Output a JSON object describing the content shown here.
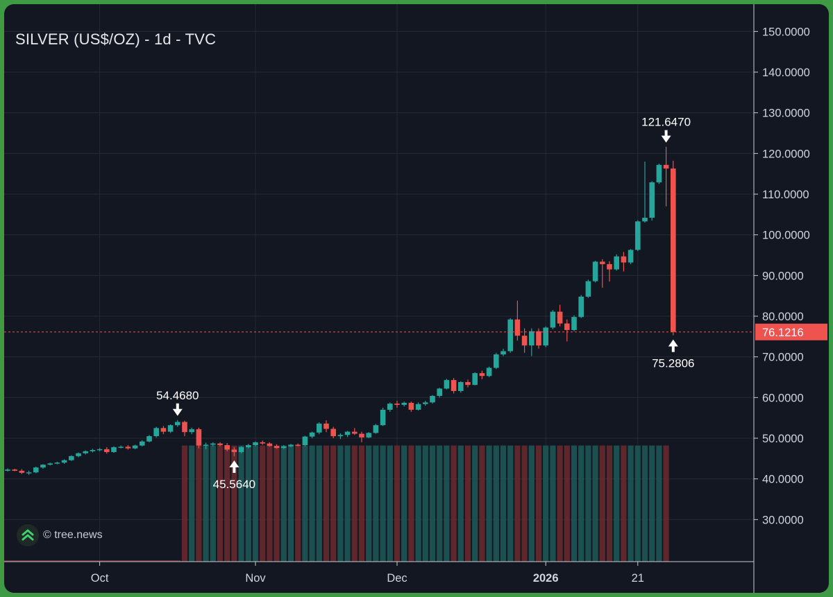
{
  "watermark": {
    "text": "© tree.news"
  },
  "colors": {
    "background": "#131722",
    "up": "#26a69a",
    "down": "#ef5350",
    "grid": "#262a35",
    "axis_text": "#d1d4dc",
    "price_line": "#ef5350"
  },
  "chart_data": {
    "type": "candlestick",
    "title": "SILVER (US$/OZ) - 1d - TVC",
    "ylim": [
      20,
      155
    ],
    "y_ticks": [
      30,
      40,
      50,
      60,
      70,
      80,
      90,
      100,
      110,
      120,
      130,
      140,
      150
    ],
    "y_tick_labels": [
      "30.0000",
      "40.0000",
      "50.0000",
      "60.0000",
      "70.0000",
      "80.0000",
      "90.0000",
      "100.0000",
      "110.0000",
      "120.0000",
      "130.0000",
      "140.0000",
      "150.0000"
    ],
    "x_ticks": [
      {
        "label": "Oct",
        "bold": false,
        "index": 13
      },
      {
        "label": "Nov",
        "bold": false,
        "index": 35
      },
      {
        "label": "Dec",
        "bold": false,
        "index": 55
      },
      {
        "label": "2026",
        "bold": true,
        "index": 76
      },
      {
        "label": "21",
        "bold": false,
        "index": 89
      }
    ],
    "last_price": 76.1216,
    "last_price_label": "76.1216",
    "grid": true,
    "volume_level": 48.2,
    "candles": [
      [
        42.0,
        42.6,
        41.8,
        42.3
      ],
      [
        42.3,
        42.5,
        41.9,
        42.0
      ],
      [
        42.0,
        42.4,
        41.2,
        41.5
      ],
      [
        41.5,
        42.0,
        41.0,
        41.6
      ],
      [
        41.6,
        43.0,
        41.4,
        42.8
      ],
      [
        42.8,
        43.6,
        42.5,
        43.5
      ],
      [
        43.5,
        44.0,
        43.3,
        43.8
      ],
      [
        43.8,
        44.2,
        43.6,
        44.0
      ],
      [
        44.0,
        44.8,
        43.7,
        44.6
      ],
      [
        44.6,
        45.8,
        44.4,
        45.6
      ],
      [
        45.6,
        46.5,
        45.3,
        46.3
      ],
      [
        46.3,
        47.0,
        46.0,
        46.8
      ],
      [
        46.8,
        47.4,
        46.5,
        47.1
      ],
      [
        47.1,
        47.6,
        46.8,
        47.3
      ],
      [
        47.3,
        47.8,
        46.2,
        46.6
      ],
      [
        46.6,
        48.0,
        46.4,
        47.8
      ],
      [
        47.8,
        48.2,
        47.5,
        47.9
      ],
      [
        47.9,
        48.3,
        47.2,
        47.5
      ],
      [
        47.5,
        48.4,
        47.3,
        48.2
      ],
      [
        48.2,
        49.5,
        48.0,
        49.2
      ],
      [
        49.2,
        50.8,
        49.0,
        50.5
      ],
      [
        50.5,
        52.8,
        50.2,
        52.5
      ],
      [
        52.5,
        53.0,
        51.0,
        51.6
      ],
      [
        51.6,
        53.4,
        51.3,
        53.2
      ],
      [
        53.2,
        54.468,
        52.8,
        54.0
      ],
      [
        54.0,
        54.3,
        50.5,
        51.5
      ],
      [
        51.5,
        52.6,
        51.0,
        52.2
      ],
      [
        52.2,
        52.6,
        47.5,
        48.2
      ],
      [
        48.2,
        48.9,
        47.3,
        48.4
      ],
      [
        48.4,
        49.0,
        48.0,
        48.7
      ],
      [
        48.7,
        49.0,
        48.0,
        48.3
      ],
      [
        48.3,
        48.8,
        46.8,
        47.2
      ],
      [
        47.2,
        47.8,
        45.564,
        46.6
      ],
      [
        46.6,
        48.0,
        46.3,
        47.8
      ],
      [
        47.8,
        48.6,
        47.5,
        48.3
      ],
      [
        48.3,
        49.2,
        48.0,
        49.0
      ],
      [
        49.0,
        49.4,
        48.4,
        48.7
      ],
      [
        48.7,
        49.0,
        47.9,
        48.1
      ],
      [
        48.1,
        48.5,
        47.4,
        47.6
      ],
      [
        47.6,
        48.3,
        47.3,
        48.0
      ],
      [
        48.0,
        48.6,
        47.8,
        48.4
      ],
      [
        48.4,
        48.7,
        48.0,
        48.3
      ],
      [
        48.3,
        50.6,
        48.0,
        50.4
      ],
      [
        50.4,
        51.6,
        50.0,
        51.4
      ],
      [
        51.4,
        53.9,
        51.0,
        53.6
      ],
      [
        53.6,
        54.4,
        51.5,
        52.3
      ],
      [
        52.3,
        52.8,
        50.0,
        50.5
      ],
      [
        50.5,
        51.2,
        49.8,
        50.8
      ],
      [
        50.8,
        51.8,
        50.3,
        51.6
      ],
      [
        51.6,
        52.5,
        50.8,
        51.1
      ],
      [
        51.1,
        51.6,
        49.0,
        50.2
      ],
      [
        50.2,
        51.5,
        50.0,
        51.3
      ],
      [
        51.3,
        53.5,
        51.1,
        53.2
      ],
      [
        53.2,
        57.5,
        53.0,
        57.0
      ],
      [
        57.0,
        58.8,
        56.5,
        58.5
      ],
      [
        58.5,
        59.2,
        57.5,
        58.2
      ],
      [
        58.2,
        59.0,
        57.8,
        58.7
      ],
      [
        58.7,
        59.0,
        56.5,
        57.0
      ],
      [
        57.0,
        58.8,
        56.8,
        58.4
      ],
      [
        58.4,
        59.2,
        58.0,
        58.8
      ],
      [
        58.8,
        60.6,
        58.5,
        60.4
      ],
      [
        60.4,
        62.4,
        60.0,
        62.2
      ],
      [
        62.2,
        64.6,
        62.0,
        64.3
      ],
      [
        64.3,
        64.8,
        61.0,
        61.6
      ],
      [
        61.6,
        64.0,
        61.2,
        63.8
      ],
      [
        63.8,
        64.4,
        62.5,
        63.1
      ],
      [
        63.1,
        66.2,
        63.0,
        66.0
      ],
      [
        66.0,
        66.6,
        64.5,
        65.3
      ],
      [
        65.3,
        67.6,
        65.0,
        67.3
      ],
      [
        67.3,
        71.0,
        67.0,
        70.6
      ],
      [
        70.6,
        72.0,
        70.2,
        71.4
      ],
      [
        71.4,
        79.5,
        71.0,
        79.2
      ],
      [
        79.2,
        83.8,
        74.0,
        75.2
      ],
      [
        75.2,
        77.0,
        71.0,
        72.8
      ],
      [
        72.8,
        77.0,
        70.2,
        76.3
      ],
      [
        76.3,
        77.0,
        72.0,
        72.8
      ],
      [
        72.8,
        77.5,
        72.4,
        77.2
      ],
      [
        77.2,
        81.5,
        76.8,
        81.1
      ],
      [
        81.1,
        82.8,
        77.5,
        78.2
      ],
      [
        78.2,
        79.2,
        73.8,
        76.6
      ],
      [
        76.6,
        80.2,
        76.3,
        79.8
      ],
      [
        79.8,
        85.2,
        79.5,
        84.8
      ],
      [
        84.8,
        89.0,
        84.5,
        88.6
      ],
      [
        88.6,
        93.6,
        88.3,
        93.4
      ],
      [
        93.4,
        94.0,
        87.0,
        92.8
      ],
      [
        92.8,
        93.5,
        88.5,
        91.5
      ],
      [
        91.5,
        95.2,
        91.2,
        94.7
      ],
      [
        94.7,
        95.8,
        91.0,
        93.2
      ],
      [
        93.2,
        96.5,
        92.8,
        96.3
      ],
      [
        96.3,
        103.6,
        96.0,
        103.3
      ],
      [
        103.3,
        118.0,
        103.0,
        104.2
      ],
      [
        104.2,
        113.2,
        103.5,
        112.9
      ],
      [
        112.9,
        117.5,
        112.5,
        117.2
      ],
      [
        117.2,
        121.647,
        107.0,
        116.3
      ],
      [
        116.3,
        118.2,
        75.2806,
        76.1216
      ]
    ],
    "annotations": [
      {
        "index": 24,
        "value": 54.468,
        "label": "54.4680",
        "position": "above"
      },
      {
        "index": 32,
        "value": 45.564,
        "label": "45.5640",
        "position": "below"
      },
      {
        "index": 93,
        "value": 121.647,
        "label": "121.6470",
        "position": "above"
      },
      {
        "index": 94,
        "value": 75.2806,
        "label": "75.2806",
        "position": "below"
      }
    ]
  }
}
